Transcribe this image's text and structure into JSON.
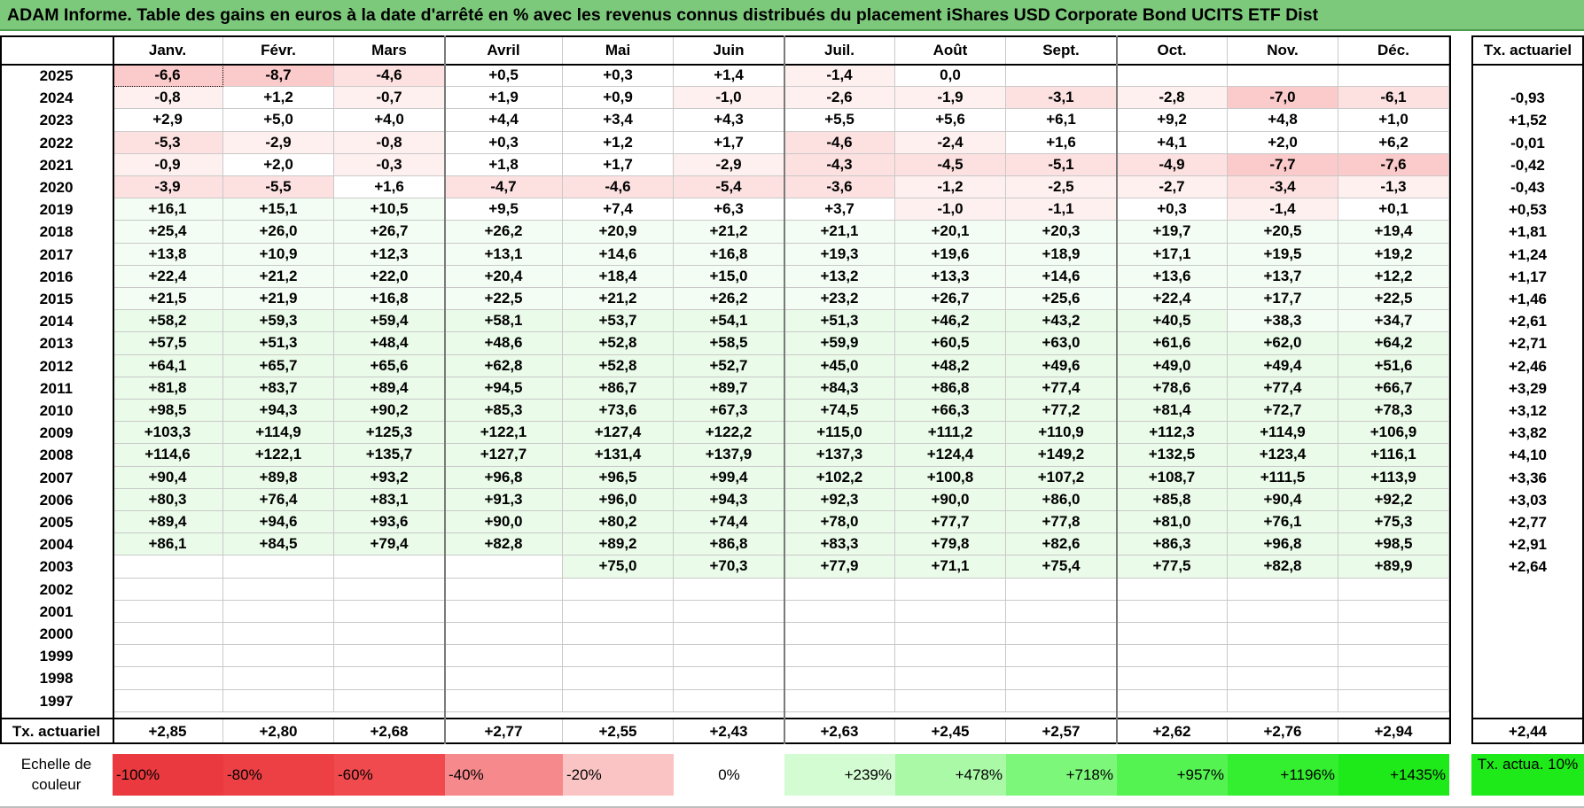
{
  "title": "ADAM Informe. Table des gains en euros à la date d'arrêté en % avec les revenus connus distribués du placement iShares USD Corporate Bond UCITS ETF Dist",
  "months": [
    "Janv.",
    "Févr.",
    "Mars",
    "Avril",
    "Mai",
    "Juin",
    "Juil.",
    "Août",
    "Sept.",
    "Oct.",
    "Nov.",
    "Déc."
  ],
  "tx_header": "Tx. actuariel",
  "rows": [
    {
      "year": "2025",
      "values": [
        "-6,6",
        "-8,7",
        "-4,6",
        "+0,5",
        "+0,3",
        "+1,4",
        "-1,4",
        "0,0",
        "",
        "",
        "",
        ""
      ],
      "tx": ""
    },
    {
      "year": "2024",
      "values": [
        "-0,8",
        "+1,2",
        "-0,7",
        "+1,9",
        "+0,9",
        "-1,0",
        "-2,6",
        "-1,9",
        "-3,1",
        "-2,8",
        "-7,0",
        "-6,1"
      ],
      "tx": "-0,93"
    },
    {
      "year": "2023",
      "values": [
        "+2,9",
        "+5,0",
        "+4,0",
        "+4,4",
        "+3,4",
        "+4,3",
        "+5,5",
        "+5,6",
        "+6,1",
        "+9,2",
        "+4,8",
        "+1,0"
      ],
      "tx": "+1,52"
    },
    {
      "year": "2022",
      "values": [
        "-5,3",
        "-2,9",
        "-0,8",
        "+0,3",
        "+1,2",
        "+1,7",
        "-4,6",
        "-2,4",
        "+1,6",
        "+4,1",
        "+2,0",
        "+6,2"
      ],
      "tx": "-0,01"
    },
    {
      "year": "2021",
      "values": [
        "-0,9",
        "+2,0",
        "-0,3",
        "+1,8",
        "+1,7",
        "-2,9",
        "-4,3",
        "-4,5",
        "-5,1",
        "-4,9",
        "-7,7",
        "-7,6"
      ],
      "tx": "-0,42"
    },
    {
      "year": "2020",
      "values": [
        "-3,9",
        "-5,5",
        "+1,6",
        "-4,7",
        "-4,6",
        "-5,4",
        "-3,6",
        "-1,2",
        "-2,5",
        "-2,7",
        "-3,4",
        "-1,3"
      ],
      "tx": "-0,43"
    },
    {
      "year": "2019",
      "values": [
        "+16,1",
        "+15,1",
        "+10,5",
        "+9,5",
        "+7,4",
        "+6,3",
        "+3,7",
        "-1,0",
        "-1,1",
        "+0,3",
        "-1,4",
        "+0,1"
      ],
      "tx": "+0,53"
    },
    {
      "year": "2018",
      "values": [
        "+25,4",
        "+26,0",
        "+26,7",
        "+26,2",
        "+20,9",
        "+21,2",
        "+21,1",
        "+20,1",
        "+20,3",
        "+19,7",
        "+20,5",
        "+19,4"
      ],
      "tx": "+1,81"
    },
    {
      "year": "2017",
      "values": [
        "+13,8",
        "+10,9",
        "+12,3",
        "+13,1",
        "+14,6",
        "+16,8",
        "+19,3",
        "+19,6",
        "+18,9",
        "+17,1",
        "+19,5",
        "+19,2"
      ],
      "tx": "+1,24"
    },
    {
      "year": "2016",
      "values": [
        "+22,4",
        "+21,2",
        "+22,0",
        "+20,4",
        "+18,4",
        "+15,0",
        "+13,2",
        "+13,3",
        "+14,6",
        "+13,6",
        "+13,7",
        "+12,2"
      ],
      "tx": "+1,17"
    },
    {
      "year": "2015",
      "values": [
        "+21,5",
        "+21,9",
        "+16,8",
        "+22,5",
        "+21,2",
        "+26,2",
        "+23,2",
        "+26,7",
        "+25,6",
        "+22,4",
        "+17,7",
        "+22,5"
      ],
      "tx": "+1,46"
    },
    {
      "year": "2014",
      "values": [
        "+58,2",
        "+59,3",
        "+59,4",
        "+58,1",
        "+53,7",
        "+54,1",
        "+51,3",
        "+46,2",
        "+43,2",
        "+40,5",
        "+38,3",
        "+34,7"
      ],
      "tx": "+2,61"
    },
    {
      "year": "2013",
      "values": [
        "+57,5",
        "+51,3",
        "+48,4",
        "+48,6",
        "+52,8",
        "+58,5",
        "+59,9",
        "+60,5",
        "+63,0",
        "+61,6",
        "+62,0",
        "+64,2"
      ],
      "tx": "+2,71"
    },
    {
      "year": "2012",
      "values": [
        "+64,1",
        "+65,7",
        "+65,6",
        "+62,8",
        "+52,8",
        "+52,7",
        "+45,0",
        "+48,2",
        "+49,6",
        "+49,0",
        "+49,4",
        "+51,6"
      ],
      "tx": "+2,46"
    },
    {
      "year": "2011",
      "values": [
        "+81,8",
        "+83,7",
        "+89,4",
        "+94,5",
        "+86,7",
        "+89,7",
        "+84,3",
        "+86,8",
        "+77,4",
        "+78,6",
        "+77,4",
        "+66,7"
      ],
      "tx": "+3,29"
    },
    {
      "year": "2010",
      "values": [
        "+98,5",
        "+94,3",
        "+90,2",
        "+85,3",
        "+73,6",
        "+67,3",
        "+74,5",
        "+66,3",
        "+77,2",
        "+81,4",
        "+72,7",
        "+78,3"
      ],
      "tx": "+3,12"
    },
    {
      "year": "2009",
      "values": [
        "+103,3",
        "+114,9",
        "+125,3",
        "+122,1",
        "+127,4",
        "+122,2",
        "+115,0",
        "+111,2",
        "+110,9",
        "+112,3",
        "+114,9",
        "+106,9"
      ],
      "tx": "+3,82"
    },
    {
      "year": "2008",
      "values": [
        "+114,6",
        "+122,1",
        "+135,7",
        "+127,7",
        "+131,4",
        "+137,9",
        "+137,3",
        "+124,4",
        "+149,2",
        "+132,5",
        "+123,4",
        "+116,1"
      ],
      "tx": "+4,10"
    },
    {
      "year": "2007",
      "values": [
        "+90,4",
        "+89,8",
        "+93,2",
        "+96,8",
        "+96,5",
        "+99,4",
        "+102,2",
        "+100,8",
        "+107,2",
        "+108,7",
        "+111,5",
        "+113,9"
      ],
      "tx": "+3,36"
    },
    {
      "year": "2006",
      "values": [
        "+80,3",
        "+76,4",
        "+83,1",
        "+91,3",
        "+96,0",
        "+94,3",
        "+92,3",
        "+90,0",
        "+86,0",
        "+85,8",
        "+90,4",
        "+92,2"
      ],
      "tx": "+3,03"
    },
    {
      "year": "2005",
      "values": [
        "+89,4",
        "+94,6",
        "+93,6",
        "+90,0",
        "+80,2",
        "+74,4",
        "+78,0",
        "+77,7",
        "+77,8",
        "+81,0",
        "+76,1",
        "+75,3"
      ],
      "tx": "+2,77"
    },
    {
      "year": "2004",
      "values": [
        "+86,1",
        "+84,5",
        "+79,4",
        "+82,8",
        "+89,2",
        "+86,8",
        "+83,3",
        "+79,8",
        "+82,6",
        "+86,3",
        "+96,8",
        "+98,5"
      ],
      "tx": "+2,91"
    },
    {
      "year": "2003",
      "values": [
        "",
        "",
        "",
        "",
        "+75,0",
        "+70,3",
        "+77,9",
        "+71,1",
        "+75,4",
        "+77,5",
        "+82,8",
        "+89,9"
      ],
      "tx": "+2,64"
    },
    {
      "year": "2002",
      "values": [
        "",
        "",
        "",
        "",
        "",
        "",
        "",
        "",
        "",
        "",
        "",
        ""
      ],
      "tx": ""
    },
    {
      "year": "2001",
      "values": [
        "",
        "",
        "",
        "",
        "",
        "",
        "",
        "",
        "",
        "",
        "",
        ""
      ],
      "tx": ""
    },
    {
      "year": "2000",
      "values": [
        "",
        "",
        "",
        "",
        "",
        "",
        "",
        "",
        "",
        "",
        "",
        ""
      ],
      "tx": ""
    },
    {
      "year": "1999",
      "values": [
        "",
        "",
        "",
        "",
        "",
        "",
        "",
        "",
        "",
        "",
        "",
        ""
      ],
      "tx": ""
    },
    {
      "year": "1998",
      "values": [
        "",
        "",
        "",
        "",
        "",
        "",
        "",
        "",
        "",
        "",
        "",
        ""
      ],
      "tx": ""
    },
    {
      "year": "1997",
      "values": [
        "",
        "",
        "",
        "",
        "",
        "",
        "",
        "",
        "",
        "",
        "",
        ""
      ],
      "tx": ""
    }
  ],
  "footer": {
    "label": "Tx. actuariel",
    "values": [
      "+2,85",
      "+2,80",
      "+2,68",
      "+2,77",
      "+2,55",
      "+2,43",
      "+2,63",
      "+2,45",
      "+2,57",
      "+2,62",
      "+2,76",
      "+2,94"
    ],
    "total": "+2,44"
  },
  "scale": {
    "label": "Echelle de couleur",
    "items": [
      {
        "text": "-100%",
        "color": "#ea3a3f",
        "align": "left"
      },
      {
        "text": "-80%",
        "color": "#ec4045",
        "align": "left"
      },
      {
        "text": "-60%",
        "color": "#f04a4e",
        "align": "left"
      },
      {
        "text": "-40%",
        "color": "#f6898b",
        "align": "left"
      },
      {
        "text": "-20%",
        "color": "#fbc4c4",
        "align": "left"
      },
      {
        "text": "0%",
        "color": "#ffffff",
        "align": "center"
      },
      {
        "text": "+239%",
        "color": "#d4fcd3",
        "align": "right"
      },
      {
        "text": "+478%",
        "color": "#a9f9a7",
        "align": "right"
      },
      {
        "text": "+718%",
        "color": "#7cf77a",
        "align": "right"
      },
      {
        "text": "+957%",
        "color": "#55f352",
        "align": "right"
      },
      {
        "text": "+1196%",
        "color": "#33ef2f",
        "align": "right"
      },
      {
        "text": "+1435%",
        "color": "#1eea1a",
        "align": "right"
      }
    ],
    "tx_label": "Tx. actua. 10%",
    "tx_color": "#1eea1a"
  },
  "colors": {
    "title_bg": "#7dc97c",
    "neg_light": "#fff0f0",
    "neg_mid": "#fde1e1",
    "neg_strong": "#fbcaca",
    "pos_light": "#f4fdf3",
    "pos_mid": "#eafbe9"
  }
}
